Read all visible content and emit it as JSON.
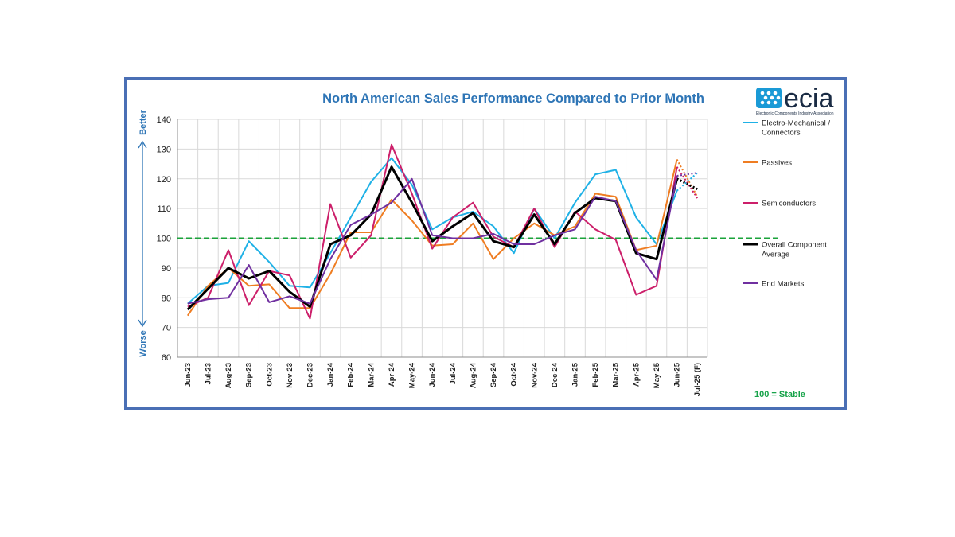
{
  "logo": {
    "wordmark": "ecia",
    "tagline": "Electronic Components Industry Association"
  },
  "stable_note": "100 = Stable",
  "chart_data": {
    "type": "line",
    "title": "North American Sales Performance Compared to Prior Month",
    "xlabel": "",
    "ylabel": "",
    "axis_side_labels": {
      "top": "Better",
      "bottom": "Worse"
    },
    "ylim": [
      60,
      140
    ],
    "yticks": [
      60,
      70,
      80,
      90,
      100,
      110,
      120,
      130,
      140
    ],
    "grid": true,
    "legend_position": "right",
    "reference_line": {
      "value": 100,
      "color": "#1aa33a",
      "style": "dashed"
    },
    "categories": [
      "Jun-23",
      "Jul-23",
      "Aug-23",
      "Sep-23",
      "Oct-23",
      "Nov-23",
      "Dec-23",
      "Jan-24",
      "Feb-24",
      "Mar-24",
      "Apr-24",
      "May-24",
      "Jun-24",
      "Jul-24",
      "Aug-24",
      "Sep-24",
      "Oct-24",
      "Nov-24",
      "Dec-24",
      "Jan-25",
      "Feb-25",
      "Mar-25",
      "Apr-25",
      "May-25",
      "Jun-25",
      "Jul-25 (F)"
    ],
    "forecast_from_index": 24,
    "series": [
      {
        "name": "Electro-Mechanical / Connectors",
        "color": "#1fb1e6",
        "width": 2,
        "values": [
          78,
          84,
          85,
          99,
          92,
          84,
          83.5,
          95,
          107,
          119,
          127,
          118,
          103,
          107,
          109,
          104,
          95,
          110,
          100,
          112,
          121.5,
          123,
          107,
          98,
          116,
          122
        ]
      },
      {
        "name": "Passives",
        "color": "#ef7d22",
        "width": 2,
        "values": [
          74,
          84,
          90,
          84,
          84.5,
          76.5,
          76.5,
          88,
          102,
          102,
          113,
          106,
          97.5,
          98,
          105,
          93,
          100,
          105,
          101,
          104,
          115,
          114,
          96,
          97.5,
          126.5,
          114
        ]
      },
      {
        "name": "Semiconductors",
        "color": "#cc1f6a",
        "width": 2,
        "values": [
          77,
          80,
          96,
          77.5,
          89,
          87.5,
          73,
          111.5,
          93.5,
          101,
          131.5,
          115,
          96.5,
          107,
          112,
          100.5,
          97,
          110,
          97,
          109,
          103,
          99.5,
          81,
          84,
          124,
          113.5
        ]
      },
      {
        "name": "Overall Component Average",
        "color": "#000000",
        "width": 3,
        "values": [
          76,
          83,
          90,
          86.5,
          89,
          82,
          77,
          98,
          101,
          108,
          124,
          112,
          99,
          104,
          108.5,
          99,
          97,
          108,
          98,
          108.5,
          113.5,
          112.5,
          95,
          93,
          120,
          116.5
        ]
      },
      {
        "name": "End Markets",
        "color": "#7030a0",
        "width": 2,
        "values": [
          78,
          79.5,
          80,
          91,
          78.5,
          80.5,
          78,
          93,
          104.5,
          108,
          112,
          120,
          101,
          100,
          100,
          101.5,
          98,
          98,
          101,
          103,
          114,
          112.5,
          96,
          86,
          121,
          122
        ]
      }
    ]
  },
  "colors": {
    "frame": "#4a6fb5",
    "title": "#2e75b6",
    "grid": "#d9d9d9",
    "stable": "#17a34a",
    "logo_blue": "#1a9ad6"
  }
}
